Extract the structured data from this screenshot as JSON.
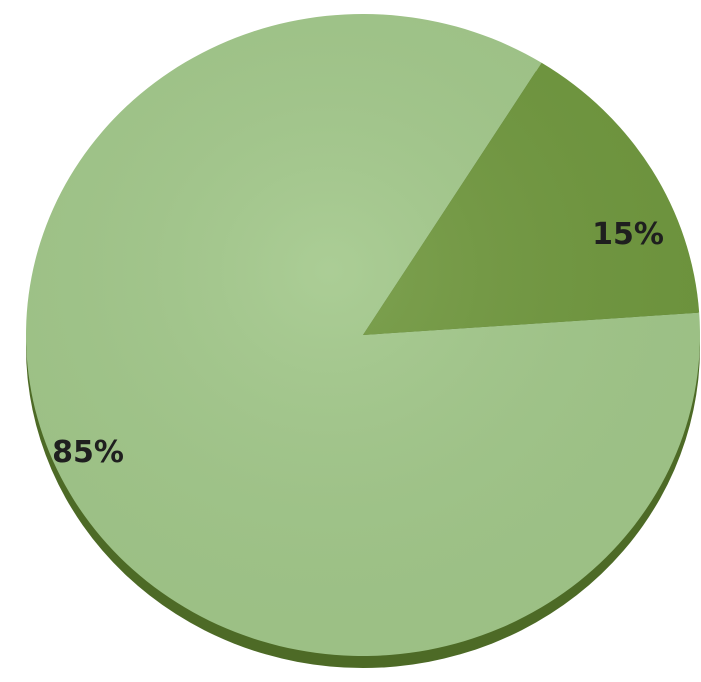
{
  "chart_data": {
    "type": "pie",
    "slices": [
      {
        "label": "85%",
        "value": 85,
        "color": "#a2c88a"
      },
      {
        "label": "15%",
        "value": 15,
        "color": "#70983e"
      }
    ]
  }
}
